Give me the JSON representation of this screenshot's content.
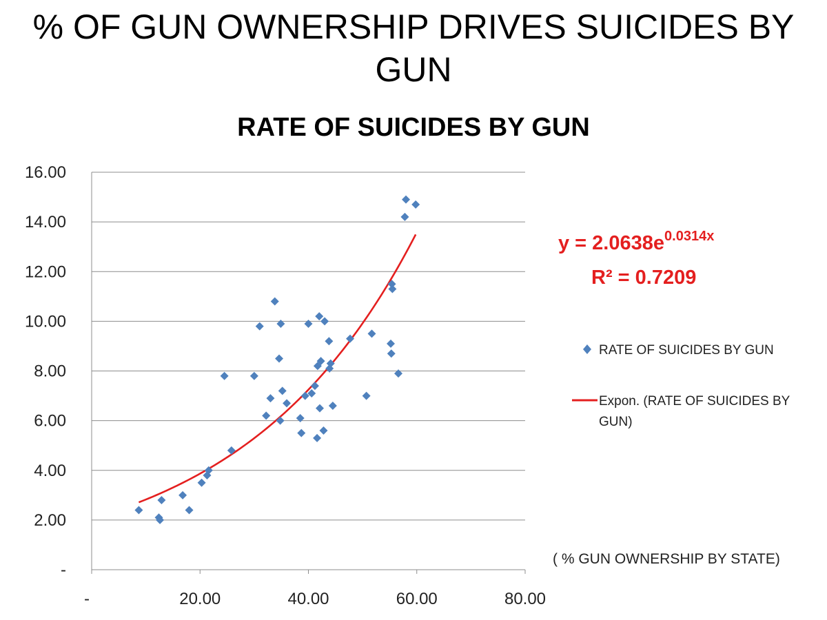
{
  "slide_title": "% OF GUN OWNERSHIP DRIVES SUICIDES BY GUN",
  "colors": {
    "points": "#4f81bd",
    "trendline": "#e41f1f",
    "grid": "#8c8c8c",
    "equation": "#e41f1f"
  },
  "chart_data": {
    "type": "scatter",
    "title": "RATE OF SUICIDES BY GUN",
    "xlabel": "( % GUN OWNERSHIP BY STATE)",
    "ylabel": "",
    "xlim": [
      0,
      80
    ],
    "ylim": [
      0,
      16
    ],
    "x_ticks": [
      "-",
      "20.00",
      "40.00",
      "60.00",
      "80.00"
    ],
    "y_ticks": [
      "-",
      "2.00",
      "4.00",
      "6.00",
      "8.00",
      "10.00",
      "12.00",
      "14.00",
      "16.00"
    ],
    "grid": "horizontal",
    "legend_position": "right",
    "series": [
      {
        "name": "RATE OF SUICIDES BY GUN",
        "marker": "diamond",
        "points": [
          [
            8.7,
            2.4
          ],
          [
            12.4,
            2.1
          ],
          [
            12.6,
            2.0
          ],
          [
            12.9,
            2.8
          ],
          [
            16.8,
            3.0
          ],
          [
            18.0,
            2.4
          ],
          [
            20.3,
            3.5
          ],
          [
            21.3,
            3.8
          ],
          [
            21.6,
            4.0
          ],
          [
            24.5,
            7.8
          ],
          [
            25.8,
            4.8
          ],
          [
            30.0,
            7.8
          ],
          [
            31.0,
            9.8
          ],
          [
            32.2,
            6.2
          ],
          [
            33.0,
            6.9
          ],
          [
            33.8,
            10.8
          ],
          [
            34.6,
            8.5
          ],
          [
            34.8,
            6.0
          ],
          [
            34.9,
            9.9
          ],
          [
            35.2,
            7.2
          ],
          [
            36.0,
            6.7
          ],
          [
            38.5,
            6.1
          ],
          [
            38.7,
            5.5
          ],
          [
            39.4,
            7.0
          ],
          [
            40.0,
            9.9
          ],
          [
            40.6,
            7.1
          ],
          [
            41.2,
            7.4
          ],
          [
            41.6,
            5.3
          ],
          [
            41.7,
            8.2
          ],
          [
            42.0,
            10.2
          ],
          [
            42.1,
            6.5
          ],
          [
            42.3,
            8.4
          ],
          [
            42.8,
            5.6
          ],
          [
            43.0,
            10.0
          ],
          [
            43.8,
            9.2
          ],
          [
            43.9,
            8.1
          ],
          [
            44.1,
            8.3
          ],
          [
            44.5,
            6.6
          ],
          [
            47.7,
            9.3
          ],
          [
            50.7,
            7.0
          ],
          [
            51.7,
            9.5
          ],
          [
            55.2,
            9.1
          ],
          [
            55.3,
            8.7
          ],
          [
            55.4,
            11.5
          ],
          [
            55.5,
            11.3
          ],
          [
            56.6,
            7.9
          ],
          [
            57.8,
            14.2
          ],
          [
            58.0,
            14.9
          ],
          [
            59.8,
            14.7
          ]
        ]
      },
      {
        "name": "Expon. (RATE OF SUICIDES BY GUN)",
        "type": "exponential_trendline",
        "a": 2.0638,
        "b": 0.0314,
        "x_range": [
          8.7,
          59.8
        ]
      }
    ],
    "annotations": {
      "equation_prefix": "y = 2.0638e",
      "equation_exponent": "0.0314x",
      "r_squared": "R² = 0.7209"
    }
  }
}
